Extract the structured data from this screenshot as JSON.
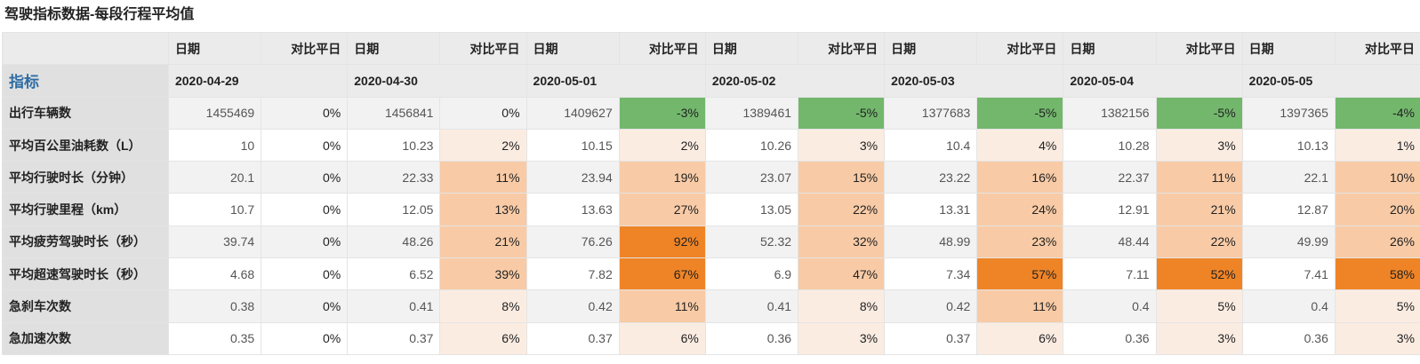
{
  "title": "驾驶指标数据-每段行程平均值",
  "header": {
    "date_caption": "日期",
    "compare_caption": "对比平日",
    "metric_label": "指标",
    "dates": [
      "2020-04-29",
      "2020-04-30",
      "2020-05-01",
      "2020-05-02",
      "2020-05-03",
      "2020-05-04",
      "2020-05-05"
    ]
  },
  "colors": {
    "increase_light": "#fbece2",
    "increase_medium": "#f8cba6",
    "increase_strong": "#ef8426",
    "decrease": "#73b76d",
    "title_blue": "#2e6da4"
  },
  "rows": [
    {
      "metric": "出行车辆数",
      "values": [
        "1455469",
        "1456841",
        "1409627",
        "1389461",
        "1377683",
        "1382156",
        "1397365"
      ],
      "pcts": [
        "0%",
        "0%",
        "-3%",
        "-5%",
        "-5%",
        "-5%",
        "-4%"
      ]
    },
    {
      "metric": "平均百公里油耗数（L）",
      "values": [
        "10",
        "10.23",
        "10.15",
        "10.26",
        "10.4",
        "10.28",
        "10.13"
      ],
      "pcts": [
        "0%",
        "2%",
        "2%",
        "3%",
        "4%",
        "3%",
        "1%"
      ]
    },
    {
      "metric": "平均行驶时长（分钟）",
      "values": [
        "20.1",
        "22.33",
        "23.94",
        "23.07",
        "23.22",
        "22.37",
        "22.1"
      ],
      "pcts": [
        "0%",
        "11%",
        "19%",
        "15%",
        "16%",
        "11%",
        "10%"
      ]
    },
    {
      "metric": "平均行驶里程（km）",
      "values": [
        "10.7",
        "12.05",
        "13.63",
        "13.05",
        "13.31",
        "12.91",
        "12.87"
      ],
      "pcts": [
        "0%",
        "13%",
        "27%",
        "22%",
        "24%",
        "21%",
        "20%"
      ]
    },
    {
      "metric": "平均疲劳驾驶时长（秒）",
      "values": [
        "39.74",
        "48.26",
        "76.26",
        "52.32",
        "48.99",
        "48.44",
        "49.99"
      ],
      "pcts": [
        "0%",
        "21%",
        "92%",
        "32%",
        "23%",
        "22%",
        "26%"
      ]
    },
    {
      "metric": "平均超速驾驶时长（秒）",
      "values": [
        "4.68",
        "6.52",
        "7.82",
        "6.9",
        "7.34",
        "7.11",
        "7.41"
      ],
      "pcts": [
        "0%",
        "39%",
        "67%",
        "47%",
        "57%",
        "52%",
        "58%"
      ]
    },
    {
      "metric": "急刹车次数",
      "values": [
        "0.38",
        "0.41",
        "0.42",
        "0.41",
        "0.42",
        "0.4",
        "0.4"
      ],
      "pcts": [
        "0%",
        "8%",
        "11%",
        "8%",
        "11%",
        "5%",
        "5%"
      ]
    },
    {
      "metric": "急加速次数",
      "values": [
        "0.35",
        "0.37",
        "0.37",
        "0.36",
        "0.37",
        "0.36",
        "0.36"
      ],
      "pcts": [
        "0%",
        "6%",
        "6%",
        "3%",
        "6%",
        "3%",
        "3%"
      ]
    }
  ]
}
